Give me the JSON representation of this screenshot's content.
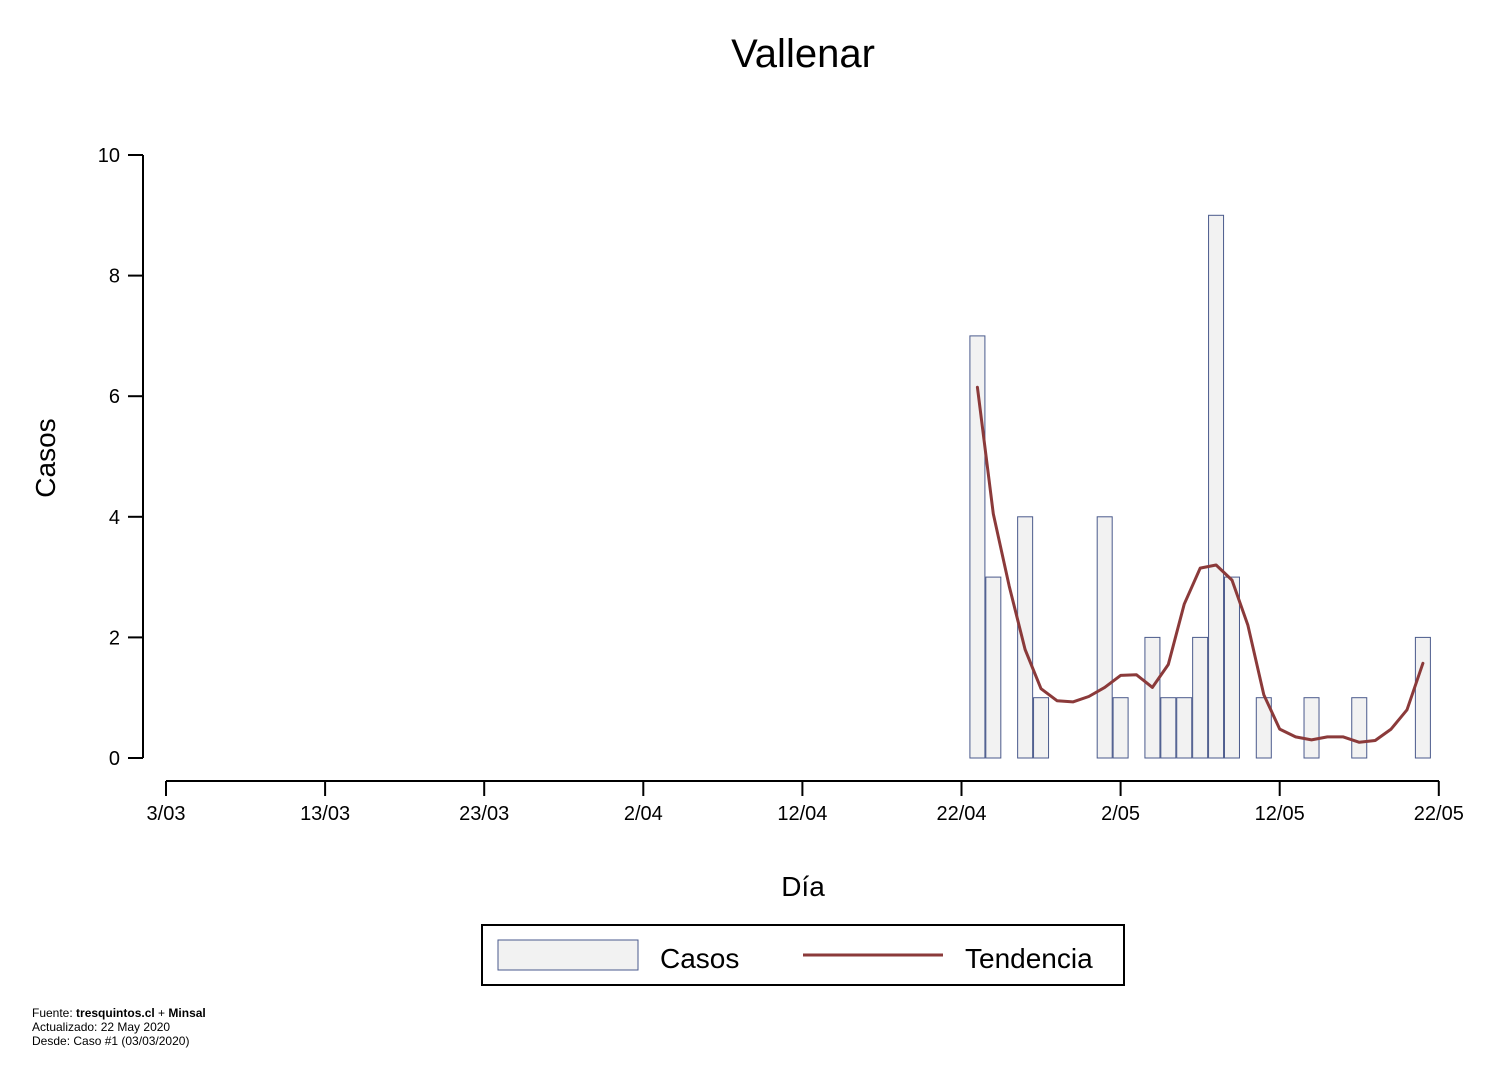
{
  "chart_data": {
    "type": "bar",
    "title": "Vallenar",
    "xlabel": "Día",
    "ylabel": "Casos",
    "x_tick_labels": [
      "3/03",
      "13/03",
      "23/03",
      "2/04",
      "12/04",
      "22/04",
      "2/05",
      "12/05",
      "22/05"
    ],
    "y_tick_labels": [
      "0",
      "2",
      "4",
      "6",
      "8",
      "10"
    ],
    "ylim": [
      0,
      10
    ],
    "grid": false,
    "legend_position": "bottom",
    "series": [
      {
        "name": "Casos",
        "kind": "bar",
        "color": "#f2f2f2",
        "stroke": "#4a5a8c",
        "points": [
          {
            "date": "2020-04-23",
            "value": 7
          },
          {
            "date": "2020-04-24",
            "value": 3
          },
          {
            "date": "2020-04-26",
            "value": 4
          },
          {
            "date": "2020-04-27",
            "value": 1
          },
          {
            "date": "2020-05-01",
            "value": 4
          },
          {
            "date": "2020-05-02",
            "value": 1
          },
          {
            "date": "2020-05-04",
            "value": 2
          },
          {
            "date": "2020-05-05",
            "value": 1
          },
          {
            "date": "2020-05-06",
            "value": 1
          },
          {
            "date": "2020-05-07",
            "value": 2
          },
          {
            "date": "2020-05-08",
            "value": 9
          },
          {
            "date": "2020-05-09",
            "value": 3
          },
          {
            "date": "2020-05-11",
            "value": 1
          },
          {
            "date": "2020-05-14",
            "value": 1
          },
          {
            "date": "2020-05-17",
            "value": 1
          },
          {
            "date": "2020-05-21",
            "value": 2
          }
        ]
      },
      {
        "name": "Tendencia",
        "kind": "line",
        "color": "#8b3a3a",
        "points": [
          {
            "date": "2020-04-23",
            "value": 6.15
          },
          {
            "date": "2020-04-24",
            "value": 4.05
          },
          {
            "date": "2020-04-25",
            "value": 2.85
          },
          {
            "date": "2020-04-26",
            "value": 1.8
          },
          {
            "date": "2020-04-27",
            "value": 1.15
          },
          {
            "date": "2020-04-28",
            "value": 0.95
          },
          {
            "date": "2020-04-29",
            "value": 0.93
          },
          {
            "date": "2020-04-30",
            "value": 1.02
          },
          {
            "date": "2020-05-01",
            "value": 1.17
          },
          {
            "date": "2020-05-02",
            "value": 1.37
          },
          {
            "date": "2020-05-03",
            "value": 1.38
          },
          {
            "date": "2020-05-04",
            "value": 1.17
          },
          {
            "date": "2020-05-05",
            "value": 1.55
          },
          {
            "date": "2020-05-06",
            "value": 2.55
          },
          {
            "date": "2020-05-07",
            "value": 3.15
          },
          {
            "date": "2020-05-08",
            "value": 3.2
          },
          {
            "date": "2020-05-09",
            "value": 2.95
          },
          {
            "date": "2020-05-10",
            "value": 2.2
          },
          {
            "date": "2020-05-11",
            "value": 1.05
          },
          {
            "date": "2020-05-12",
            "value": 0.48
          },
          {
            "date": "2020-05-13",
            "value": 0.35
          },
          {
            "date": "2020-05-14",
            "value": 0.3
          },
          {
            "date": "2020-05-15",
            "value": 0.35
          },
          {
            "date": "2020-05-16",
            "value": 0.35
          },
          {
            "date": "2020-05-17",
            "value": 0.26
          },
          {
            "date": "2020-05-18",
            "value": 0.29
          },
          {
            "date": "2020-05-19",
            "value": 0.48
          },
          {
            "date": "2020-05-20",
            "value": 0.8
          },
          {
            "date": "2020-05-21",
            "value": 1.57
          }
        ]
      }
    ]
  },
  "footer": {
    "source_prefix": "Fuente: ",
    "source_site": "tresquintos.cl",
    "source_join": " + ",
    "source_org": "Minsal",
    "updated": "Actualizado: 22 May 2020",
    "since": "Desde: Caso #1  (03/03/2020)"
  }
}
